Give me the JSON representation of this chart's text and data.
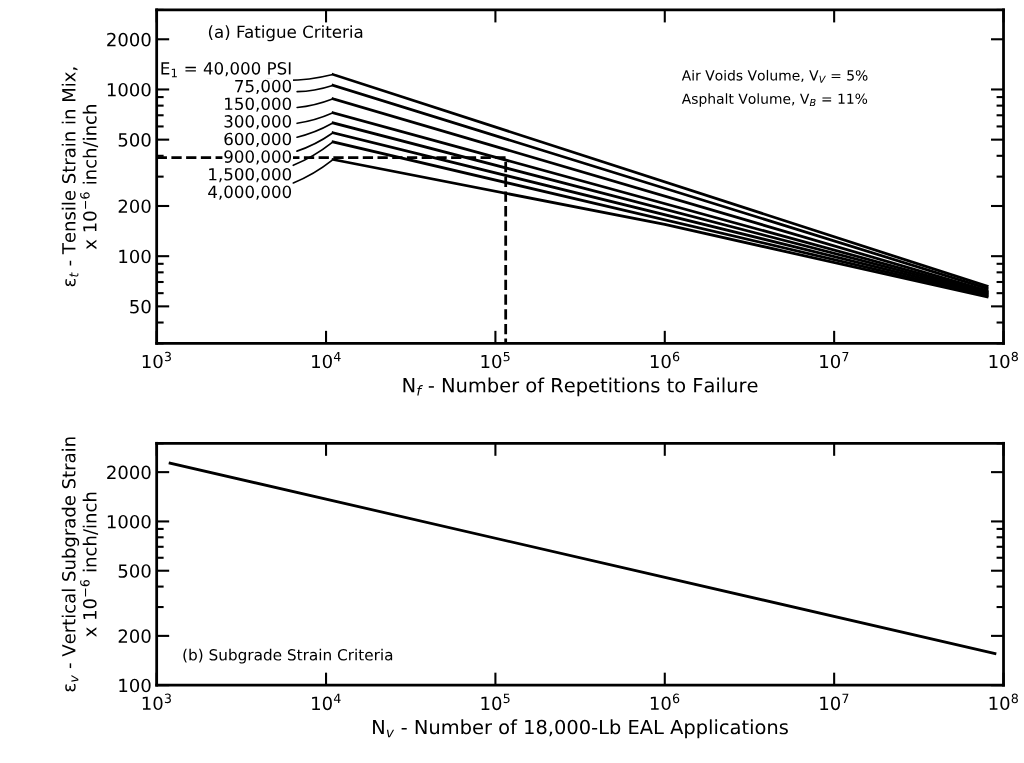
{
  "chart_data": [
    {
      "type": "line",
      "log": "xy",
      "grid": false,
      "legend": "top left",
      "marker": "none",
      "line_style": "solid",
      "xlabel": "N$_{f}$ - Number of Repetitions to Failure",
      "ylabel": "ε$_{t}$ - Tensile Strain in Mix,\nx 10$^{−6}$ inch/inch",
      "xlim": [
        1000,
        100000000
      ],
      "ylim": [
        30,
        3000
      ],
      "xticks": [
        {
          "value": 1000,
          "label": "10$^{3}$"
        },
        {
          "value": 10000,
          "label": "10$^{4}$"
        },
        {
          "value": 100000,
          "label": "10$^{5}$"
        },
        {
          "value": 1000000,
          "label": "10$^{6}$"
        },
        {
          "value": 10000000,
          "label": "10$^{7}$"
        },
        {
          "value": 100000000,
          "label": "10$^{8}$"
        }
      ],
      "yticks": [
        50,
        100,
        200,
        500,
        1000,
        2000
      ],
      "annotations": [
        "(a) Fatigue Criteria",
        "Air Voids Volume, V$_{V}$ = 5%",
        "Asphalt Volume, V$_{B}$ = 11%"
      ],
      "series": [
        {
          "name": "E$_{1}$ = 40,000 PSI",
          "color": "#000000",
          "x": [
            11000,
            80000000
          ],
          "values": [
            1230,
            66
          ]
        },
        {
          "name": "75,000",
          "color": "#000000",
          "x": [
            11000,
            80000000
          ],
          "values": [
            1060,
            64
          ]
        },
        {
          "name": "150,000",
          "color": "#000000",
          "x": [
            11000,
            80000000
          ],
          "values": [
            880,
            62
          ]
        },
        {
          "name": "300,000",
          "color": "#000000",
          "x": [
            11000,
            80000000
          ],
          "values": [
            725,
            61
          ]
        },
        {
          "name": "600,000",
          "color": "#000000",
          "x": [
            11000,
            80000000
          ],
          "values": [
            630,
            60
          ]
        },
        {
          "name": "900,000",
          "color": "#000000",
          "x": [
            11000,
            80000000
          ],
          "values": [
            550,
            59
          ]
        },
        {
          "name": "1,500,000",
          "color": "#000000",
          "x": [
            11000,
            80000000
          ],
          "values": [
            485,
            58
          ]
        },
        {
          "name": "4,000,000",
          "color": "#000000",
          "x": [
            11000,
            1000000,
            80000000
          ],
          "values": [
            380,
            155,
            57
          ]
        },
        {
          "color": "#000000",
          "line_style": "dashed",
          "x": [
            1000,
            115000,
            115000
          ],
          "values": [
            390,
            390,
            30
          ]
        }
      ]
    },
    {
      "type": "line",
      "log": "xy",
      "grid": false,
      "marker": "none",
      "line_style": "solid",
      "xlabel": "N$_{v}$ - Number of 18,000-Lb EAL Applications",
      "ylabel": "ε$_{v}$ - Vertical Subgrade Strain\nx 10$^{−6}$ inch/inch",
      "xlim": [
        1000,
        100000000
      ],
      "ylim": [
        100,
        3000
      ],
      "xticks": [
        {
          "value": 1000,
          "label": "10$^{3}$"
        },
        {
          "value": 10000,
          "label": "10$^{4}$"
        },
        {
          "value": 100000,
          "label": "10$^{5}$"
        },
        {
          "value": 1000000,
          "label": "10$^{6}$"
        },
        {
          "value": 10000000,
          "label": "10$^{7}$"
        },
        {
          "value": 100000000,
          "label": "10$^{8}$"
        }
      ],
      "yticks": [
        100,
        200,
        500,
        1000,
        2000
      ],
      "annotations": [
        "(b) Subgrade Strain Criteria"
      ],
      "series": [
        {
          "color": "#000000",
          "x": [
            1200,
            89000000
          ],
          "values": [
            2270,
            156
          ]
        }
      ]
    }
  ]
}
